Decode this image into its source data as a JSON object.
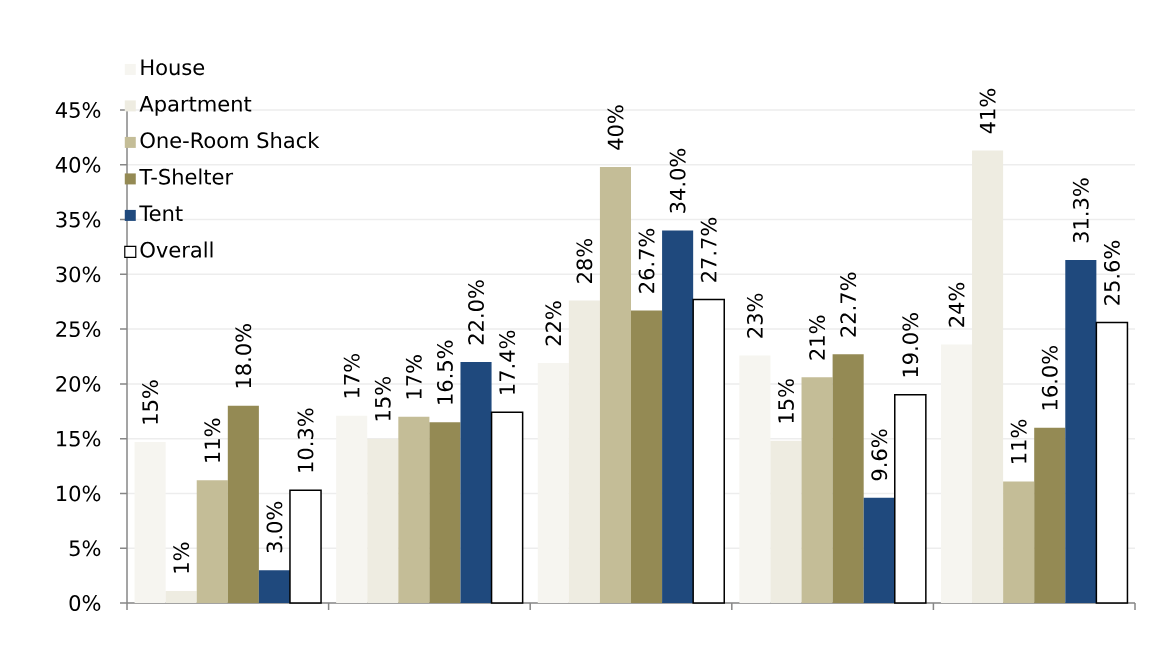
{
  "chart_data": {
    "type": "bar",
    "categories": [
      null,
      null,
      null,
      null,
      null
    ],
    "series": [
      {
        "name": "House",
        "color": "#f6f5f0",
        "values": [
          14.7,
          17.1,
          21.9,
          22.6,
          23.6
        ],
        "value_labels": [
          "15%",
          "17%",
          "22%",
          "23%",
          "24%"
        ]
      },
      {
        "name": "Apartment",
        "color": "#eeece1",
        "values": [
          1.1,
          15.0,
          27.6,
          14.8,
          41.3
        ],
        "value_labels": [
          "1%",
          "15%",
          "28%",
          "15%",
          "41%"
        ]
      },
      {
        "name": "One-Room Shack",
        "color": "#c4bd97",
        "values": [
          11.2,
          17.0,
          39.8,
          20.6,
          11.1
        ],
        "value_labels": [
          "11%",
          "17%",
          "40%",
          "21%",
          "11%"
        ]
      },
      {
        "name": "T-Shelter",
        "color": "#948a54",
        "values": [
          18.0,
          16.5,
          26.7,
          22.7,
          16.0
        ],
        "value_labels": [
          "18.0%",
          "16.5%",
          "26.7%",
          "22.7%",
          "16.0%"
        ]
      },
      {
        "name": "Tent",
        "color": "#1f497d",
        "values": [
          3.0,
          22.0,
          34.0,
          9.6,
          31.3
        ],
        "value_labels": [
          "3.0%",
          "22.0%",
          "34.0%",
          "9.6%",
          "31.3%"
        ]
      },
      {
        "name": "Overall",
        "color": "#ffffff",
        "values": [
          10.3,
          17.4,
          27.7,
          19.0,
          25.6
        ],
        "value_labels": [
          "10.3%",
          "17.4%",
          "27.7%",
          "19.0%",
          "25.6%"
        ]
      }
    ],
    "ylim": [
      0,
      45
    ],
    "yticks": [
      {
        "value": 0,
        "label": "0%"
      },
      {
        "value": 5,
        "label": "5%"
      },
      {
        "value": 10,
        "label": "10%"
      },
      {
        "value": 15,
        "label": "15%"
      },
      {
        "value": 20,
        "label": "20%"
      },
      {
        "value": 25,
        "label": "25%"
      },
      {
        "value": 30,
        "label": "30%"
      },
      {
        "value": 35,
        "label": "35%"
      },
      {
        "value": 40,
        "label": "40%"
      },
      {
        "value": 45,
        "label": "45%"
      }
    ],
    "grid": "y",
    "legend": "top left"
  }
}
